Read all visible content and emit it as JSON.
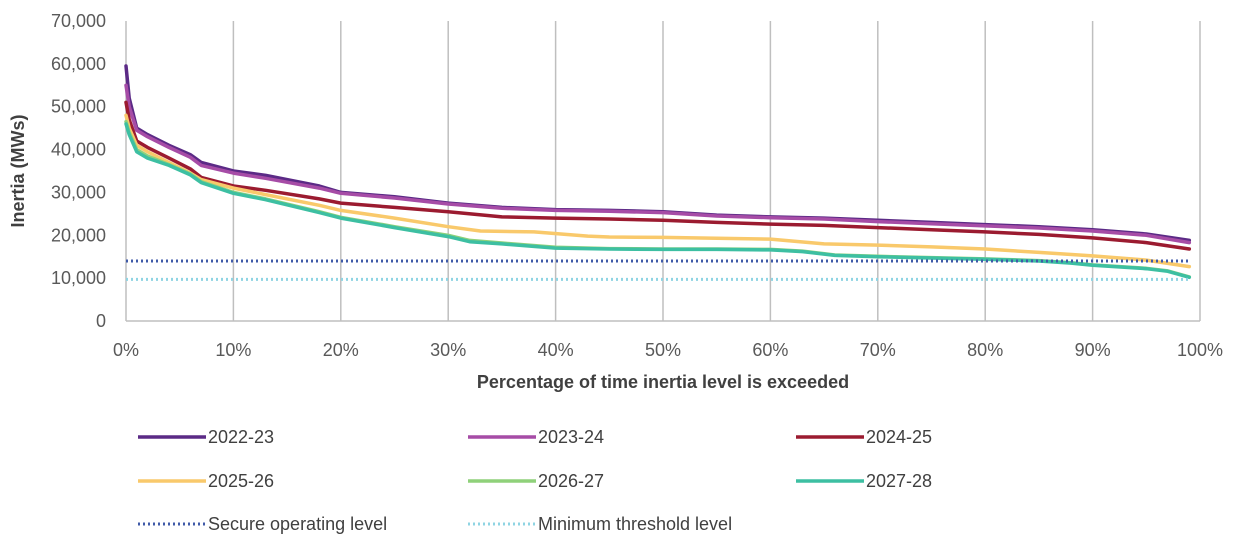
{
  "chart_data": {
    "type": "line",
    "title": "",
    "xlabel": "Percentage of time inertia level is exceeded",
    "ylabel": "Inertia (MWs)",
    "xlim": [
      0,
      100
    ],
    "ylim": [
      0,
      70000
    ],
    "x_ticks": [
      0,
      10,
      20,
      30,
      40,
      50,
      60,
      70,
      80,
      90,
      100
    ],
    "x_tick_labels": [
      "0%",
      "10%",
      "20%",
      "30%",
      "40%",
      "50%",
      "60%",
      "70%",
      "80%",
      "90%",
      "100%"
    ],
    "y_ticks": [
      0,
      10000,
      20000,
      30000,
      40000,
      50000,
      60000,
      70000
    ],
    "y_tick_labels": [
      "0",
      "10,000",
      "20,000",
      "30,000",
      "40,000",
      "50,000",
      "60,000",
      "70,000"
    ],
    "grid": {
      "vertical": true,
      "horizontal": false,
      "color": "#bfbfbf"
    },
    "legend_position": "bottom",
    "series": [
      {
        "name": "2022-23",
        "color": "#5b2a86",
        "style": "solid",
        "x": [
          0,
          0.3,
          1,
          2,
          4,
          6,
          7,
          10,
          13,
          18,
          20,
          25,
          30,
          35,
          40,
          45,
          50,
          55,
          60,
          65,
          70,
          75,
          80,
          85,
          90,
          95,
          99
        ],
        "y": [
          59500,
          52000,
          45000,
          43500,
          41000,
          38800,
          37000,
          35000,
          34000,
          31500,
          30000,
          29000,
          27500,
          26500,
          26000,
          25800,
          25500,
          24700,
          24300,
          24000,
          23500,
          23000,
          22500,
          22000,
          21300,
          20300,
          18800
        ]
      },
      {
        "name": "2023-24",
        "color": "#a64ca6",
        "style": "solid",
        "x": [
          0,
          0.3,
          1,
          2,
          4,
          6,
          7,
          10,
          13,
          18,
          20,
          25,
          30,
          35,
          40,
          45,
          50,
          55,
          60,
          65,
          70,
          75,
          80,
          85,
          90,
          95,
          99
        ],
        "y": [
          55000,
          50000,
          44500,
          43000,
          40500,
          38200,
          36300,
          34500,
          33300,
          31000,
          29800,
          28700,
          27300,
          26300,
          25800,
          25600,
          25300,
          24500,
          24100,
          23800,
          23200,
          22700,
          22200,
          21700,
          21000,
          20000,
          18300
        ]
      },
      {
        "name": "2024-25",
        "color": "#9b1b30",
        "style": "solid",
        "x": [
          0,
          0.3,
          1,
          2,
          4,
          6,
          7,
          10,
          13,
          18,
          20,
          25,
          30,
          35,
          40,
          45,
          50,
          55,
          60,
          65,
          70,
          75,
          80,
          85,
          90,
          95,
          99
        ],
        "y": [
          51000,
          47000,
          42000,
          40500,
          38000,
          35500,
          33500,
          31500,
          30500,
          28500,
          27500,
          26500,
          25500,
          24300,
          24000,
          23800,
          23500,
          23000,
          22600,
          22300,
          21800,
          21300,
          20800,
          20200,
          19400,
          18300,
          16800
        ]
      },
      {
        "name": "2025-26",
        "color": "#f9c96b",
        "style": "solid",
        "x": [
          0,
          0.3,
          1,
          2,
          4,
          6,
          7,
          10,
          13,
          18,
          20,
          25,
          30,
          33,
          38,
          43,
          45,
          50,
          55,
          60,
          65,
          70,
          75,
          80,
          85,
          90,
          95,
          99
        ],
        "y": [
          48000,
          45000,
          41000,
          39500,
          37000,
          34500,
          33000,
          31000,
          29500,
          27000,
          25800,
          24000,
          22000,
          21000,
          20800,
          19800,
          19600,
          19500,
          19300,
          19100,
          18000,
          17700,
          17300,
          16800,
          16000,
          15200,
          14200,
          12700
        ]
      },
      {
        "name": "2026-27",
        "color": "#8fd17a",
        "style": "solid",
        "x": [
          0,
          0.3,
          1,
          2,
          4,
          6,
          7,
          10,
          13,
          18,
          20,
          25,
          30,
          32,
          35,
          40,
          45,
          50,
          55,
          60,
          63,
          66,
          70,
          75,
          80,
          85,
          88,
          90,
          95,
          97,
          99
        ],
        "y": [
          46500,
          44000,
          40000,
          38500,
          36500,
          34300,
          32500,
          30000,
          28500,
          25500,
          24200,
          22000,
          20000,
          18800,
          18200,
          17200,
          16900,
          16800,
          16800,
          16700,
          16300,
          15400,
          15100,
          14800,
          14500,
          14100,
          13600,
          13100,
          12300,
          11700,
          10300
        ]
      },
      {
        "name": "2027-28",
        "color": "#3dbfa2",
        "style": "solid",
        "x": [
          0,
          0.3,
          1,
          2,
          4,
          6,
          7,
          10,
          13,
          18,
          20,
          25,
          30,
          32,
          35,
          40,
          45,
          50,
          55,
          60,
          63,
          66,
          70,
          75,
          80,
          85,
          88,
          90,
          95,
          97,
          99
        ],
        "y": [
          46000,
          43500,
          39500,
          38000,
          36300,
          34100,
          32300,
          29800,
          28300,
          25300,
          24000,
          21800,
          19700,
          18500,
          18000,
          17000,
          16800,
          16700,
          16700,
          16600,
          16200,
          15300,
          15000,
          14700,
          14400,
          14000,
          13500,
          13000,
          12200,
          11600,
          10200
        ]
      },
      {
        "name": "Secure operating level",
        "color": "#3f5aa8",
        "style": "dotted",
        "x": [
          0,
          99
        ],
        "y": [
          14000,
          14000
        ]
      },
      {
        "name": "Minimum threshold level",
        "color": "#8fd4e3",
        "style": "dotted",
        "x": [
          0,
          99
        ],
        "y": [
          9700,
          9700
        ]
      }
    ]
  }
}
